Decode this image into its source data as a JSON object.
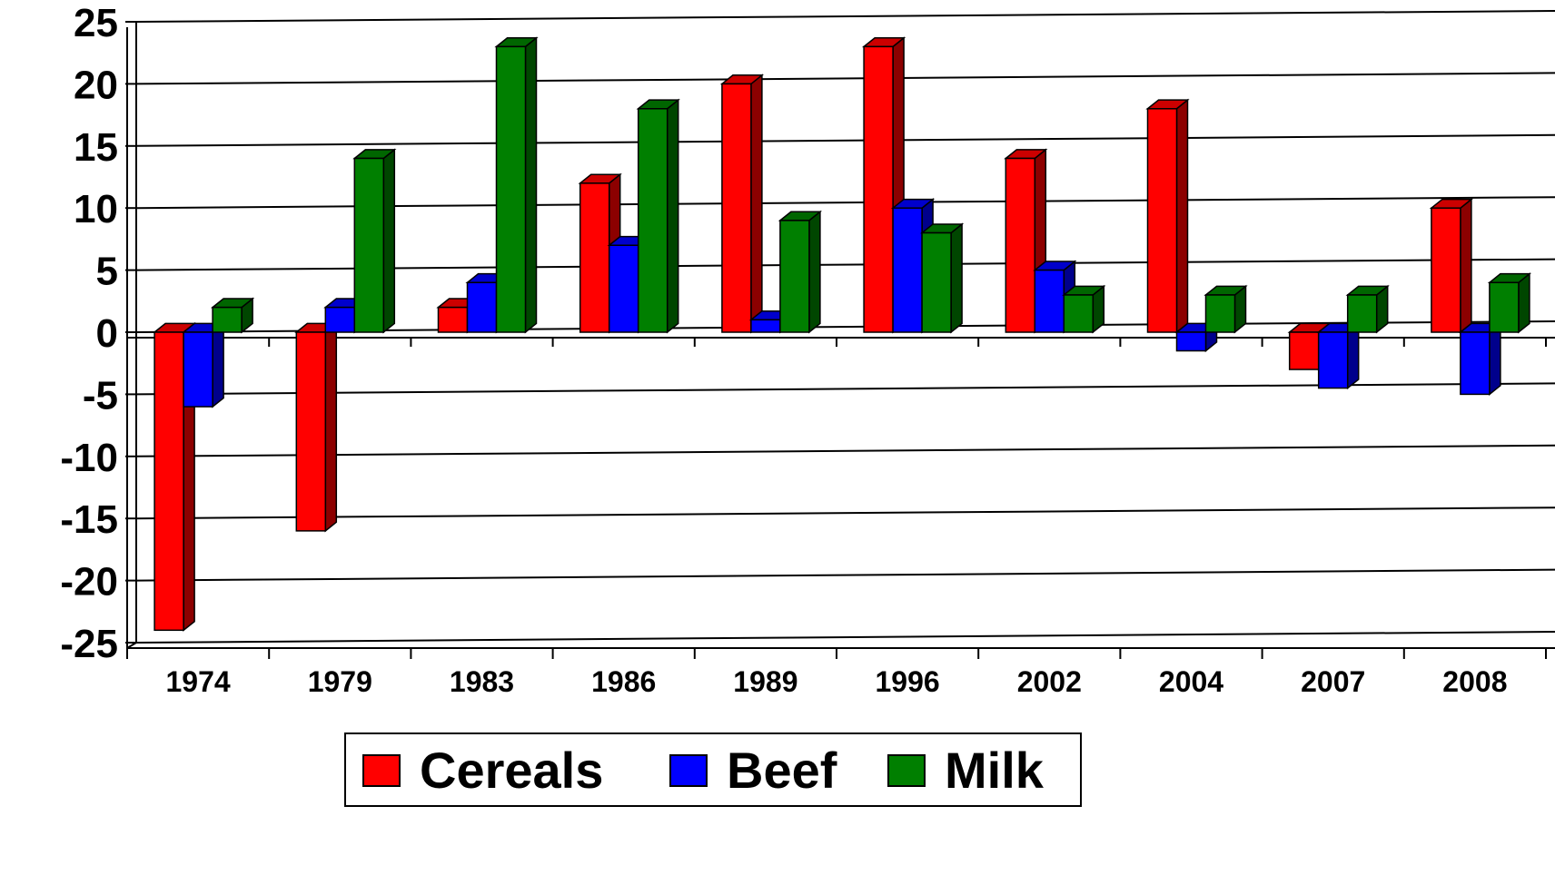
{
  "chart_data": {
    "type": "bar",
    "categories": [
      "1974",
      "1979",
      "1983",
      "1986",
      "1989",
      "1996",
      "2002",
      "2004",
      "2007",
      "2008"
    ],
    "series": [
      {
        "name": "Cereals",
        "color": "#ff0000",
        "values": [
          -24,
          -16,
          2,
          12,
          20,
          23,
          14,
          18,
          -3,
          10
        ]
      },
      {
        "name": "Beef",
        "color": "#0000ff",
        "values": [
          -6,
          2,
          4,
          7,
          1,
          10,
          5,
          -1.5,
          -4.5,
          -5
        ]
      },
      {
        "name": "Milk",
        "color": "#007f00",
        "values": [
          2,
          14,
          23,
          18,
          9,
          8,
          3,
          3,
          3,
          4
        ]
      }
    ],
    "ylim": [
      -25,
      25
    ],
    "yticks": [
      "25",
      "20",
      "15",
      "10",
      "5",
      "0",
      "-5",
      "-10",
      "-15",
      "-20",
      "-25"
    ],
    "grid": true,
    "legend_position": "bottom",
    "title": "",
    "xlabel": "",
    "ylabel": ""
  }
}
